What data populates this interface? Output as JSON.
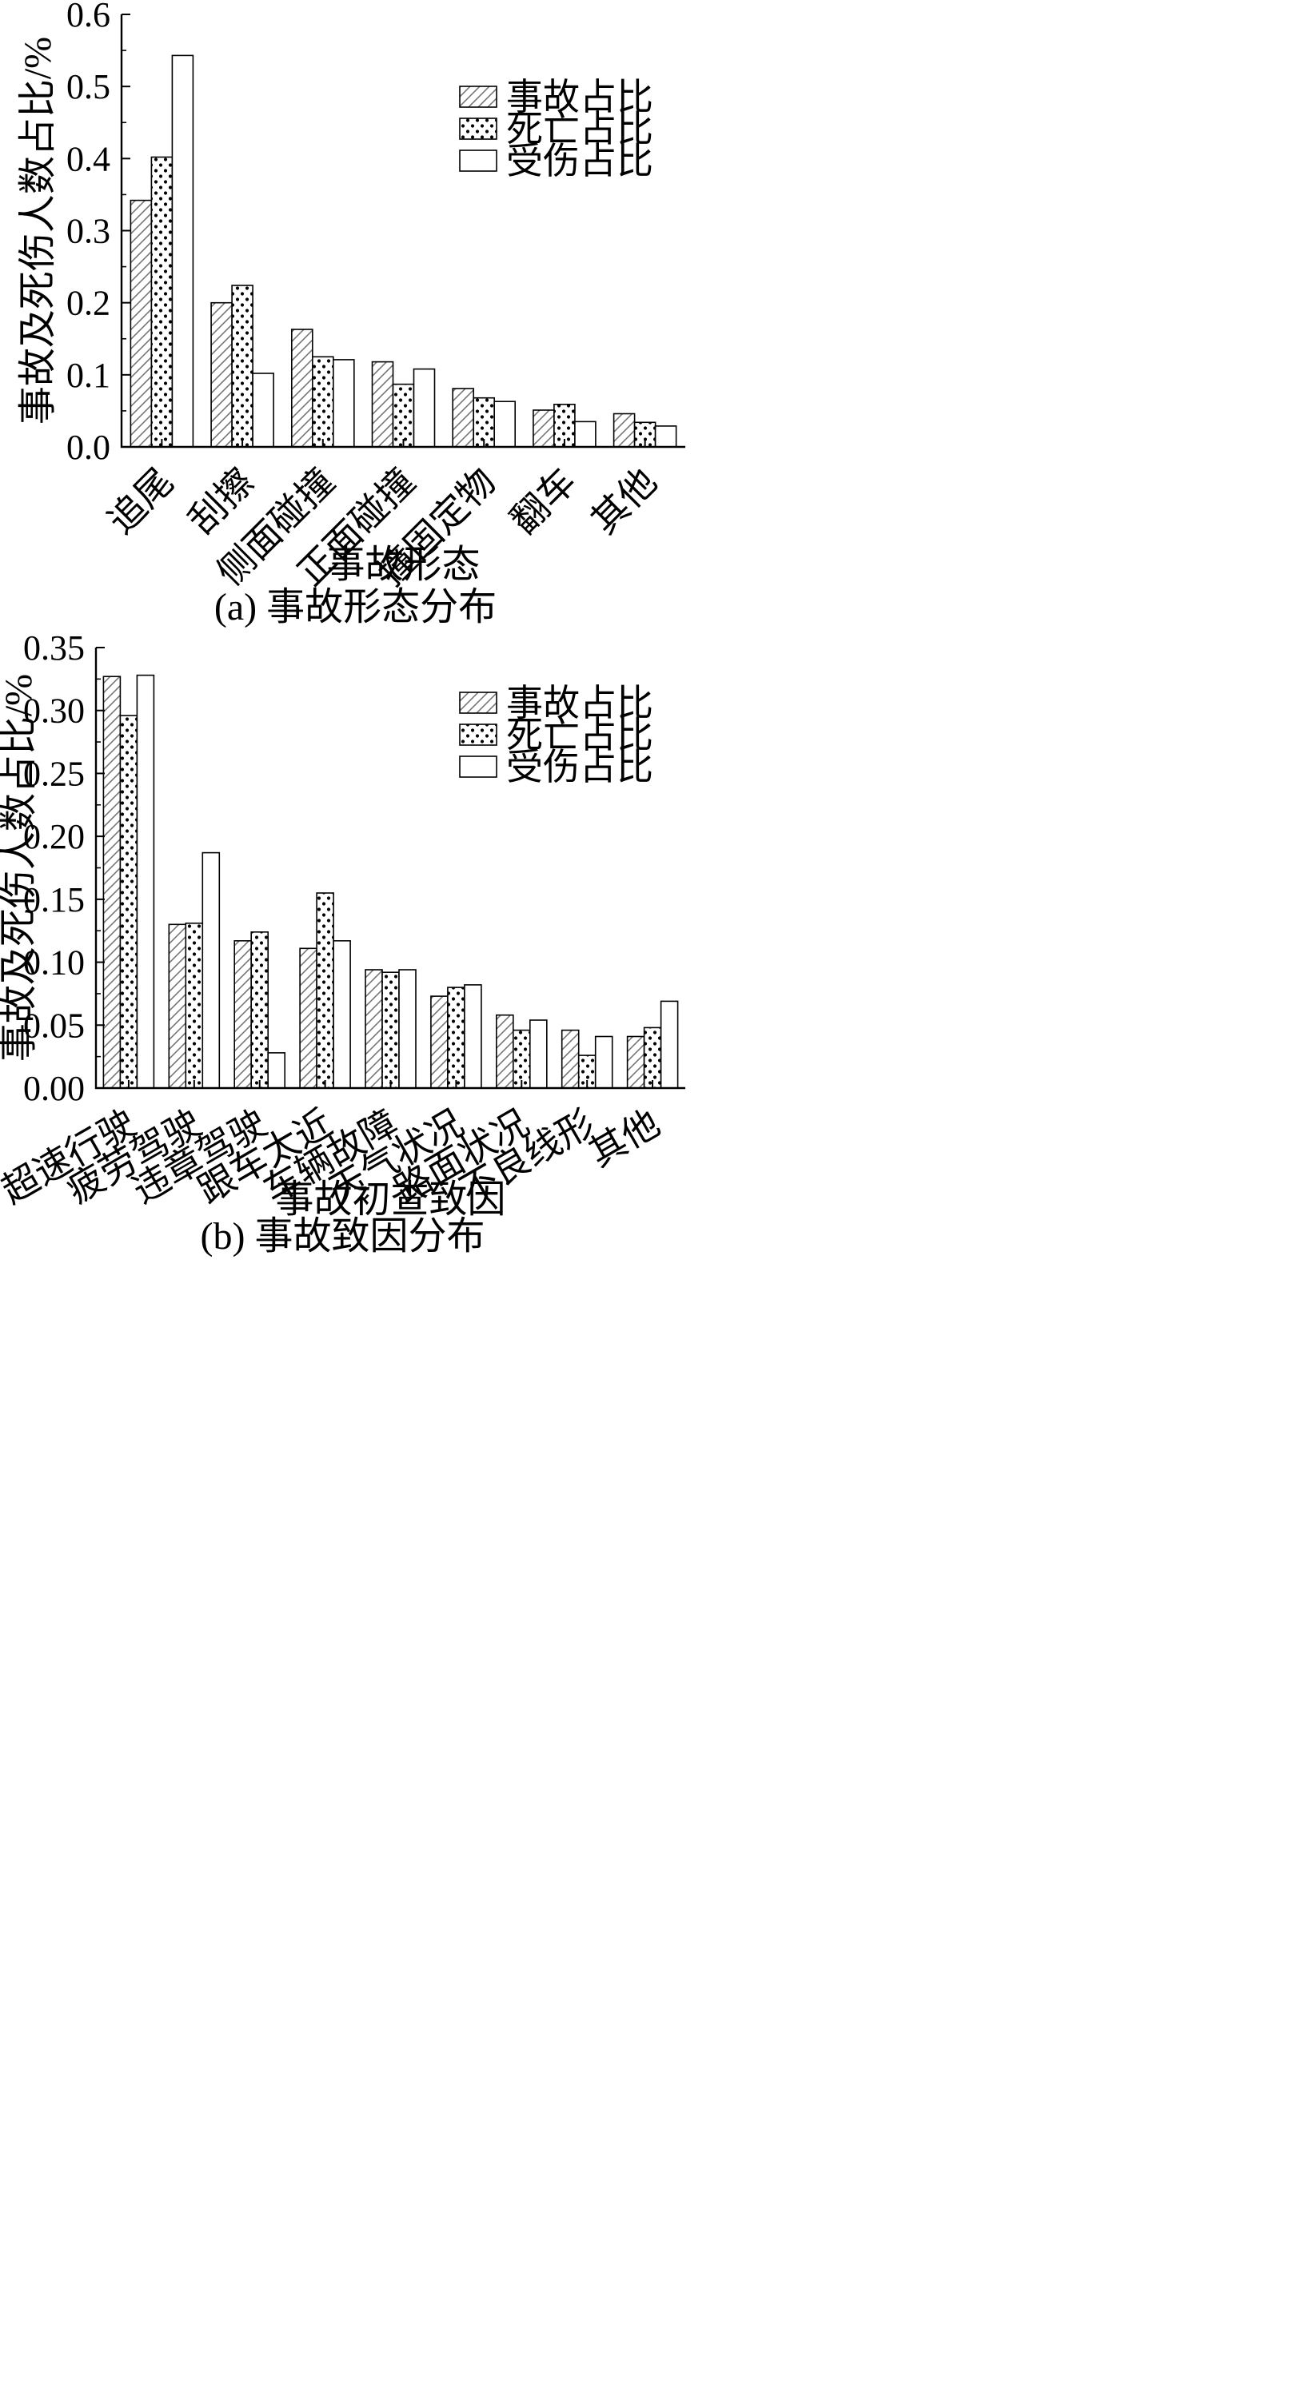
{
  "chart_data": [
    {
      "type": "bar",
      "caption": "(a) 事故形态分布",
      "xlabel": "事故形态",
      "ylabel": "事故及死伤人数占比/%",
      "ylim": [
        0,
        0.6
      ],
      "yticks": [
        "0.0",
        "0.1",
        "0.2",
        "0.3",
        "0.4",
        "0.5",
        "0.6"
      ],
      "categories": [
        "追尾",
        "刮擦",
        "侧面碰撞",
        "正面碰撞",
        "撞固定物",
        "翻车",
        "其他"
      ],
      "series": [
        {
          "name": "事故占比",
          "pattern": "hatch",
          "values": [
            0.342,
            0.2,
            0.163,
            0.118,
            0.081,
            0.051,
            0.046
          ]
        },
        {
          "name": "死亡占比",
          "pattern": "dots",
          "values": [
            0.402,
            0.224,
            0.125,
            0.087,
            0.068,
            0.059,
            0.034
          ]
        },
        {
          "name": "受伤占比",
          "pattern": "plain",
          "values": [
            0.543,
            0.102,
            0.121,
            0.108,
            0.063,
            0.035,
            0.029
          ]
        }
      ],
      "legend_position": "top-right",
      "grid": false
    },
    {
      "type": "bar",
      "caption": "(b) 事故致因分布",
      "xlabel": "事故初查致因",
      "ylabel": "事故及死伤人数占比/%",
      "ylim": [
        0,
        0.35
      ],
      "yticks": [
        "0.00",
        "0.05",
        "0.10",
        "0.15",
        "0.20",
        "0.25",
        "0.30",
        "0.35"
      ],
      "categories": [
        "超速行驶",
        "疲劳驾驶",
        "违章驾驶",
        "跟车太近",
        "车辆故障",
        "天气状况",
        "路面状况",
        "不良线形",
        "其他"
      ],
      "series": [
        {
          "name": "事故占比",
          "pattern": "hatch",
          "values": [
            0.327,
            0.13,
            0.117,
            0.111,
            0.094,
            0.073,
            0.058,
            0.046,
            0.041
          ]
        },
        {
          "name": "死亡占比",
          "pattern": "dots",
          "values": [
            0.296,
            0.131,
            0.124,
            0.155,
            0.092,
            0.08,
            0.046,
            0.026,
            0.048
          ]
        },
        {
          "name": "受伤占比",
          "pattern": "plain",
          "values": [
            0.328,
            0.187,
            0.028,
            0.117,
            0.094,
            0.082,
            0.054,
            0.041,
            0.069
          ]
        }
      ],
      "legend_position": "top-right",
      "grid": false
    }
  ]
}
